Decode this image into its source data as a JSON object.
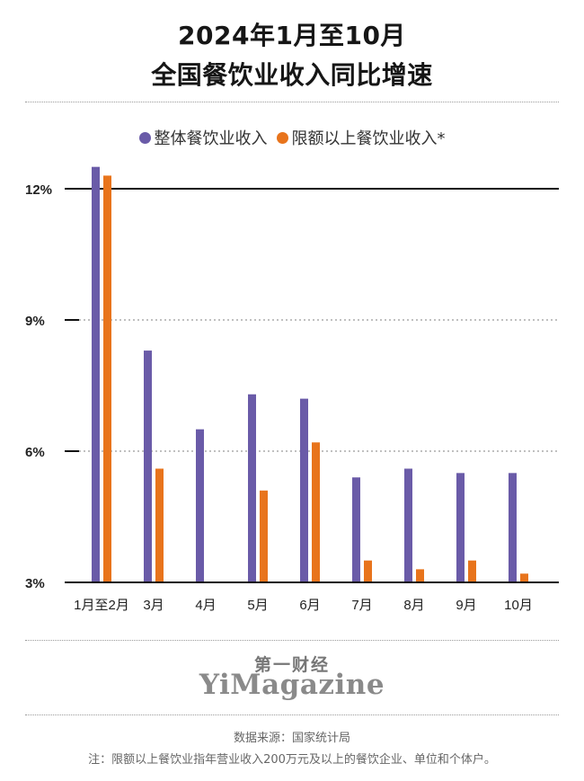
{
  "header": {
    "title_line1": "2024年1月至10月",
    "title_line2": "全国餐饮业收入同比增速"
  },
  "legend": [
    {
      "label": "整体餐饮业收入",
      "color": "#6a5ba8"
    },
    {
      "label": "限额以上餐饮业收入*",
      "color": "#e8741c"
    }
  ],
  "chart_data": {
    "type": "bar",
    "categories": [
      "1月至2月",
      "3月",
      "4月",
      "5月",
      "6月",
      "7月",
      "8月",
      "9月",
      "10月"
    ],
    "series": [
      {
        "name": "整体餐饮业收入",
        "color": "#6a5ba8",
        "values": [
          12.5,
          8.3,
          6.5,
          7.3,
          7.2,
          5.4,
          5.6,
          5.5,
          5.5
        ]
      },
      {
        "name": "限额以上餐饮业收入*",
        "color": "#e8741c",
        "values": [
          12.3,
          5.6,
          2.9,
          5.1,
          6.2,
          3.5,
          3.3,
          3.5,
          3.2
        ]
      }
    ],
    "y_ticks": [
      "3%",
      "6%",
      "9%",
      "12%"
    ],
    "ylim": [
      3,
      12.7
    ],
    "grid": true
  },
  "footer": {
    "brand_cn": "第一财经",
    "brand_en": "YiMagazine",
    "source": "数据来源：国家统计局",
    "note": "注：限额以上餐饮业指年营业收入200万元及以上的餐饮企业、单位和个体户。"
  }
}
